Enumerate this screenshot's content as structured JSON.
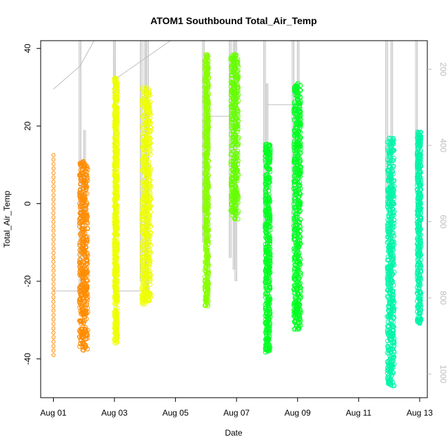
{
  "chart_data": {
    "type": "scatter",
    "title": "ATOM1 Southbound Total_Air_Temp",
    "xlabel": "Date",
    "ylabel": "Total_Air_Temp",
    "xlim": [
      "2011-07-31T14:00",
      "2011-08-13T06:00"
    ],
    "ylim": [
      -50,
      42
    ],
    "x_ticks": [
      "Aug 01",
      "Aug 03",
      "Aug 05",
      "Aug 07",
      "Aug 09",
      "Aug 11",
      "Aug 13"
    ],
    "y_ticks": [
      -40,
      -20,
      0,
      20,
      40
    ],
    "secondary_axis": {
      "side": "right",
      "color": "#bdbdbd",
      "reversed": true,
      "ticks": [
        200,
        400,
        600,
        800,
        1000
      ],
      "range": [
        125,
        1062
      ]
    },
    "series": [
      {
        "start": "2011-08-01T00:00",
        "end": "2011-08-01T00:08",
        "ymin": -39,
        "ymax": 12.5,
        "color": "#FF8C00",
        "sparse": true
      },
      {
        "start": "2011-08-01T20:30",
        "end": "2011-08-02T03:00",
        "ymin": -38,
        "ymax": 11,
        "color": "#FF8C00",
        "sparse": false
      },
      {
        "start": "2011-08-03T00:00",
        "end": "2011-08-03T02:30",
        "ymin": -36,
        "ymax": 32.5,
        "color": "#EEFF00",
        "sparse": false
      },
      {
        "start": "2011-08-03T21:30",
        "end": "2011-08-04T04:30",
        "ymin": -26,
        "ymax": 30,
        "color": "#EEFF00",
        "sparse": false
      },
      {
        "start": "2011-08-05T23:00",
        "end": "2011-08-06T02:00",
        "ymin": -26.5,
        "ymax": 38.5,
        "color": "#88FF00",
        "sparse": false
      },
      {
        "start": "2011-08-06T19:30",
        "end": "2011-08-07T01:30",
        "ymin": -4,
        "ymax": 38.5,
        "color": "#66FF00",
        "sparse": false
      },
      {
        "start": "2011-08-07T22:30",
        "end": "2011-08-08T02:30",
        "ymin": -38.5,
        "ymax": 15.5,
        "color": "#00FF22",
        "sparse": false
      },
      {
        "start": "2011-08-08T21:00",
        "end": "2011-08-09T02:30",
        "ymin": -33,
        "ymax": 31,
        "color": "#00FF22",
        "sparse": false
      },
      {
        "start": "2011-08-11T22:30",
        "end": "2011-08-12T04:00",
        "ymin": -47,
        "ymax": 17,
        "color": "#00F5A8",
        "sparse": false
      },
      {
        "start": "2011-08-12T22:00",
        "end": "2011-08-13T01:00",
        "ymin": -31,
        "ymax": 18.5,
        "color": "#00F5A8",
        "sparse": false
      }
    ],
    "grey_overlay": {
      "color": "#bdbdbd",
      "points": [
        [
          "2011-08-01T00:00",
          29.5
        ],
        [
          "2011-08-01T21:00",
          35.5
        ],
        [
          "2011-08-02T08:00",
          42
        ],
        [
          "2011-08-03T00:00",
          42
        ],
        [
          "2011-08-03T00:05",
          32
        ],
        [
          "2011-08-03T02:30",
          32.5
        ],
        [
          "2011-08-04T20:00",
          42
        ]
      ],
      "spikes": [
        {
          "x": "2011-08-01T21:00",
          "ymin": -25,
          "ymax": 42
        },
        {
          "x": "2011-08-02T00:30",
          "ymin": -20,
          "ymax": 19
        },
        {
          "x": "2011-08-03T00:00",
          "ymin": -23,
          "ymax": 42
        },
        {
          "x": "2011-08-03T21:00",
          "ymin": -20,
          "ymax": 42
        },
        {
          "x": "2011-08-04T00:00",
          "ymin": -22,
          "ymax": 42
        },
        {
          "x": "2011-08-04T02:00",
          "ymin": -24,
          "ymax": 42
        },
        {
          "x": "2011-08-05T22:00",
          "ymin": -10,
          "ymax": 42
        },
        {
          "x": "2011-08-06T19:00",
          "ymin": -14,
          "ymax": 42
        },
        {
          "x": "2011-08-06T22:00",
          "ymin": -17,
          "ymax": 42
        },
        {
          "x": "2011-08-06T23:30",
          "ymin": -20,
          "ymax": 42
        },
        {
          "x": "2011-08-07T22:00",
          "ymin": -5,
          "ymax": 42
        },
        {
          "x": "2011-08-08T00:00",
          "ymin": -18,
          "ymax": 31
        },
        {
          "x": "2011-08-08T20:30",
          "ymin": -10,
          "ymax": 42
        },
        {
          "x": "2011-08-09T00:30",
          "ymin": -15,
          "ymax": 42
        },
        {
          "x": "2011-08-11T22:00",
          "ymin": 0,
          "ymax": 42
        },
        {
          "x": "2011-08-12T02:00",
          "ymin": -30,
          "ymax": 42
        },
        {
          "x": "2011-08-12T21:30",
          "ymin": 5,
          "ymax": 42
        }
      ],
      "hlines": [
        {
          "x0": "2011-08-01T00:00",
          "x1": "2011-08-02T00:00",
          "y": -22.5
        },
        {
          "x0": "2011-08-03T00:00",
          "x1": "2011-08-04T01:00",
          "y": -22.5
        },
        {
          "x0": "2011-08-06T00:00",
          "x1": "2011-08-06T20:00",
          "y": 22.5
        },
        {
          "x0": "2011-08-08T00:00",
          "x1": "2011-08-08T22:00",
          "y": 25.5
        }
      ]
    }
  }
}
